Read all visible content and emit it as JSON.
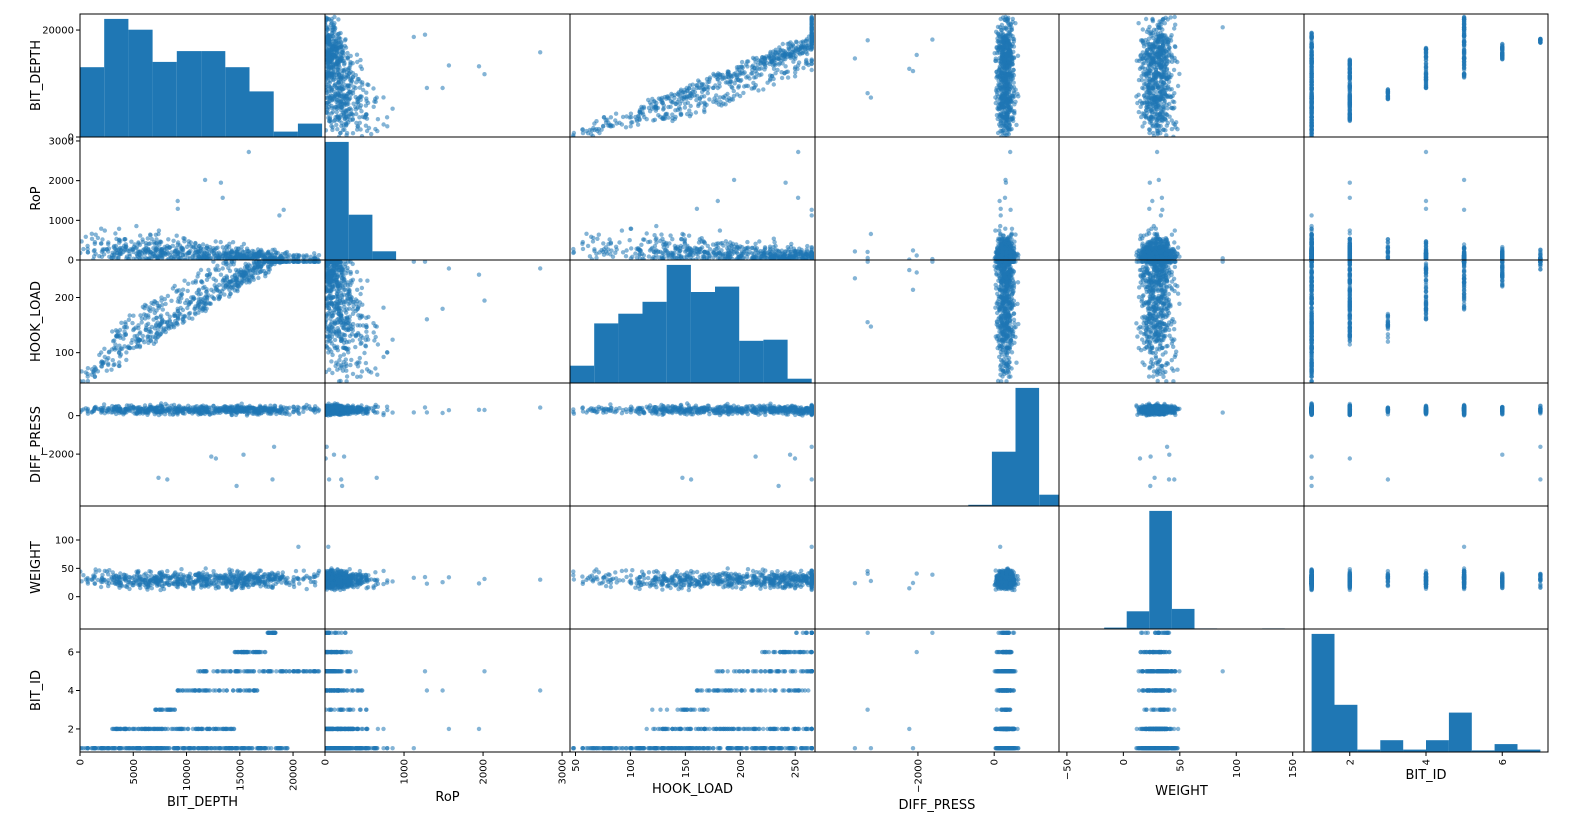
{
  "chart_data": {
    "type": "scatter_matrix",
    "variables": [
      "BIT_DEPTH",
      "RoP",
      "HOOK_LOAD",
      "DIFF_PRESS",
      "WEIGHT",
      "BIT_ID"
    ],
    "ranges": {
      "BIT_DEPTH": [
        0,
        23000
      ],
      "RoP": [
        0,
        3100
      ],
      "HOOK_LOAD": [
        45,
        268
      ],
      "DIFF_PRESS": [
        -4700,
        1700
      ],
      "WEIGHT": [
        -57,
        160
      ],
      "BIT_ID": [
        0.8,
        7.2
      ]
    },
    "ticks": {
      "BIT_DEPTH": {
        "row": [
          0,
          20000
        ],
        "col": [
          0,
          5000,
          10000,
          15000,
          20000
        ]
      },
      "RoP": {
        "row": [
          0,
          1000,
          2000,
          3000
        ],
        "col": [
          0,
          1000,
          2000,
          3000
        ]
      },
      "HOOK_LOAD": {
        "row": [
          100,
          200
        ],
        "col": [
          50,
          100,
          150,
          200,
          250
        ]
      },
      "DIFF_PRESS": {
        "row": [
          -2000,
          0
        ],
        "col": [
          -2000,
          0
        ]
      },
      "WEIGHT": {
        "row": [
          0,
          50,
          100
        ],
        "col": [
          -50,
          0,
          50,
          100,
          150
        ]
      },
      "BIT_ID": {
        "row": [
          2,
          4,
          6
        ],
        "col": [
          2,
          4,
          6
        ]
      }
    },
    "histograms": {
      "BIT_DEPTH": {
        "edges": [
          0,
          2273,
          4546,
          6819,
          9092,
          11365,
          13638,
          15911,
          18184,
          20457,
          22730
        ],
        "counts": [
          13,
          22,
          20,
          14,
          16,
          16,
          13,
          8.5,
          1,
          2.5
        ]
      },
      "RoP": {
        "edges": [
          0,
          300,
          600,
          900,
          1200,
          1500,
          1800,
          2100,
          2400,
          2700,
          3000
        ],
        "counts": [
          30,
          11.5,
          2.2,
          0.1,
          0.05,
          0.03,
          0.02,
          0.02,
          0.02,
          0.02
        ]
      },
      "HOOK_LOAD": {
        "edges": [
          45,
          67,
          89,
          111,
          133,
          155,
          177,
          199,
          221,
          243,
          265
        ],
        "counts": [
          1.6,
          5.5,
          6.4,
          7.5,
          10.9,
          8.4,
          8.9,
          3.9,
          4,
          0.4
        ]
      },
      "DIFF_PRESS": {
        "edges": [
          -4400,
          -3780,
          -3160,
          -2540,
          -1920,
          -1300,
          -680,
          -60,
          560,
          1180,
          1800
        ],
        "counts": [
          0.02,
          0.02,
          0.02,
          0.02,
          0.02,
          0.02,
          0.5,
          23,
          50,
          4.8
        ]
      },
      "WEIGHT": {
        "edges": [
          -37,
          -17,
          3,
          23,
          43,
          63,
          83,
          103,
          123,
          143,
          163
        ],
        "counts": [
          0.3,
          1.2,
          15,
          100,
          17,
          0.5,
          0.2,
          0.1,
          0.5,
          0.1
        ]
      },
      "BIT_ID": {
        "edges": [
          1,
          1.6,
          2.2,
          2.8,
          3.4,
          4,
          4.6,
          5.2,
          5.8,
          6.4,
          7
        ],
        "counts": [
          30,
          12,
          0.6,
          3,
          0.6,
          3,
          10,
          0.4,
          2,
          0.6
        ]
      }
    },
    "point_color": "#1f77b4",
    "background": "#ffffff"
  }
}
